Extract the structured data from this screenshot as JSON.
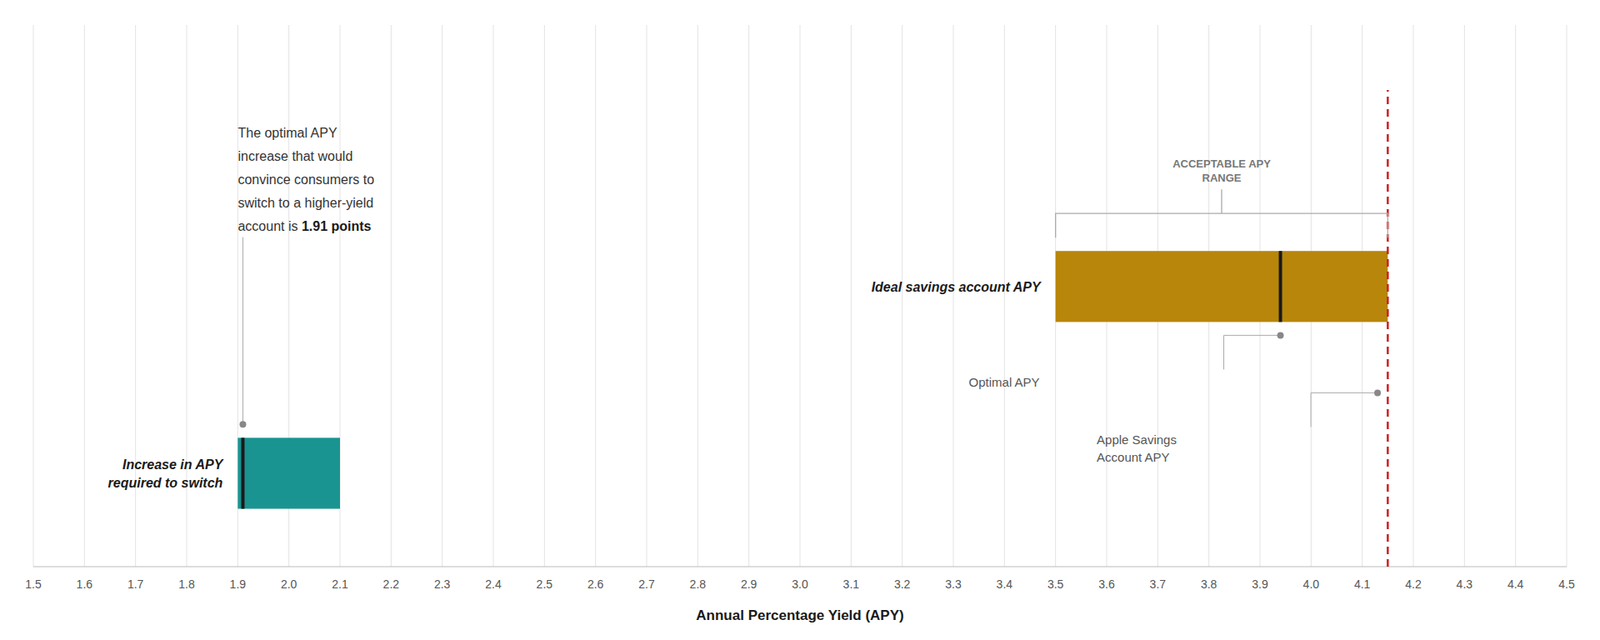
{
  "chart_data": {
    "type": "bar",
    "orientation": "horizontal",
    "categories": [
      "Increase in APY\nrequired to switch",
      "Ideal savings account APY"
    ],
    "starts": [
      1.9,
      3.5
    ],
    "values": [
      2.1,
      4.15
    ],
    "centers": [
      1.91,
      3.94
    ],
    "colors": [
      "#1a9490",
      "#b8860b"
    ],
    "reference_line": {
      "value": 4.15,
      "color": "#cc2222",
      "line_style": "dashed"
    },
    "annotations": [
      {
        "x": 1.91,
        "lines": [
          "The optimal APY",
          "increase that would",
          "convince consumers to",
          "switch to a higher-yield",
          "account is "
        ],
        "bold": "1.91 points"
      },
      {
        "x": 3.94,
        "lines": [
          "Optimal APY"
        ]
      },
      {
        "x": 4.13,
        "lines": [
          "Apple Savings",
          "Account APY"
        ]
      }
    ],
    "acceptable_range": {
      "values": [
        3.5,
        4.15
      ],
      "label": "ACCEPTABLE APY\nRANGE"
    },
    "xlabel": "Annual Percentage Yield (APY)",
    "xlim": [
      1.5,
      4.5
    ],
    "xticks": [
      1.5,
      1.6,
      1.7,
      1.8,
      1.9,
      {
        "value": 2.0,
        "label": "2.0"
      },
      2.1,
      2.2,
      2.3,
      2.4,
      2.5,
      2.6,
      2.7,
      2.8,
      2.9,
      {
        "value": 3.0,
        "label": "3.0"
      },
      3.1,
      3.2,
      3.3,
      3.4,
      3.5,
      3.6,
      3.7,
      3.8,
      3.9,
      {
        "value": 4.0,
        "label": "4.0"
      },
      4.1,
      4.2,
      4.3,
      4.4,
      4.5
    ],
    "grid": true,
    "tick_labels": "x"
  }
}
